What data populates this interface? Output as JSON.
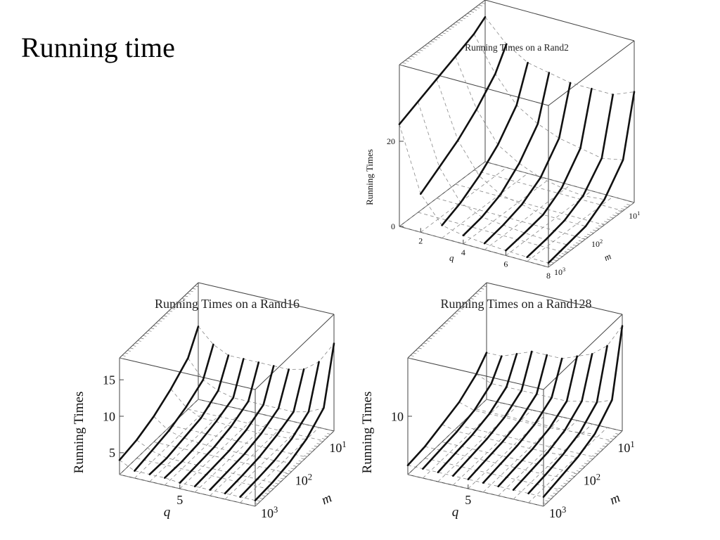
{
  "slide": {
    "title": "Running time"
  },
  "chart_data": [
    {
      "type": "surface-3d",
      "title": "Running Times on a Rand2",
      "zlabel": "Running Times",
      "xlabel": "q",
      "ylabel": "m",
      "x_ticks": [
        "2",
        "4",
        "6",
        "8"
      ],
      "z_ticks": [
        "0",
        "20"
      ],
      "y_ticks": [
        {
          "base": "10",
          "exp": "1"
        },
        {
          "base": "10",
          "exp": "2"
        },
        {
          "base": "10",
          "exp": "3"
        }
      ],
      "q": [
        1,
        2,
        3,
        4,
        5,
        6,
        7,
        8
      ],
      "m_log": [
        0.7,
        1,
        1.5,
        2,
        2.5,
        3
      ],
      "zlim": [
        0,
        38
      ],
      "series": [
        {
          "q": 1,
          "values": [
            34,
            32,
            30,
            28,
            26,
            24
          ]
        },
        {
          "q": 2,
          "values": [
            29,
            24,
            19,
            15,
            12,
            9
          ]
        },
        {
          "q": 3,
          "values": [
            26,
            18,
            12,
            8,
            5,
            3
          ]
        },
        {
          "q": 4,
          "values": [
            25,
            15,
            9,
            5,
            3,
            2
          ]
        },
        {
          "q": 5,
          "values": [
            24,
            13,
            7,
            4,
            2.5,
            1.5
          ]
        },
        {
          "q": 6,
          "values": [
            24,
            12,
            6,
            3,
            2,
            1.2
          ]
        },
        {
          "q": 7,
          "values": [
            24,
            11,
            5.5,
            3,
            1.8,
            1
          ]
        },
        {
          "q": 8,
          "values": [
            26,
            12,
            6,
            3,
            2,
            1
          ]
        }
      ]
    },
    {
      "type": "surface-3d",
      "title": "Running Times on a Rand16",
      "zlabel": "Running Times",
      "xlabel": "q",
      "ylabel": "m",
      "x_ticks": [
        "5"
      ],
      "z_ticks": [
        "5",
        "10",
        "15"
      ],
      "y_ticks": [
        {
          "base": "10",
          "exp": "1"
        },
        {
          "base": "10",
          "exp": "2"
        },
        {
          "base": "10",
          "exp": "3"
        }
      ],
      "q": [
        1,
        2,
        3,
        4,
        5,
        6,
        7,
        8,
        9,
        10
      ],
      "m_log": [
        0.7,
        1,
        1.5,
        2,
        2.5,
        3
      ],
      "zlim": [
        2,
        18
      ],
      "series": [
        {
          "q": 1,
          "values": [
            12,
            9,
            7,
            5.5,
            4.5,
            4
          ]
        },
        {
          "q": 2,
          "values": [
            10,
            6.5,
            5,
            4,
            3.5,
            3
          ]
        },
        {
          "q": 3,
          "values": [
            9,
            5.5,
            4,
            3.5,
            3,
            3
          ]
        },
        {
          "q": 4,
          "values": [
            9,
            5,
            4,
            3.3,
            3,
            3
          ]
        },
        {
          "q": 5,
          "values": [
            9,
            5,
            3.8,
            3.2,
            3,
            2.8
          ]
        },
        {
          "q": 6,
          "values": [
            9,
            5,
            3.8,
            3.2,
            3,
            2.8
          ]
        },
        {
          "q": 7,
          "values": [
            9,
            5,
            3.8,
            3.2,
            3,
            2.8
          ]
        },
        {
          "q": 8,
          "values": [
            9.5,
            5,
            4,
            3.3,
            3,
            2.8
          ]
        },
        {
          "q": 9,
          "values": [
            11,
            5.5,
            4,
            3.3,
            3,
            2.8
          ]
        },
        {
          "q": 10,
          "values": [
            14,
            6.5,
            4.5,
            3.5,
            3,
            2.8
          ]
        }
      ]
    },
    {
      "type": "surface-3d",
      "title": "Running Times on a Rand128",
      "zlabel": "Running Times",
      "xlabel": "q",
      "ylabel": "m",
      "x_ticks": [
        "5"
      ],
      "z_ticks": [
        "10"
      ],
      "y_ticks": [
        {
          "base": "10",
          "exp": "1"
        },
        {
          "base": "10",
          "exp": "2"
        },
        {
          "base": "10",
          "exp": "3"
        }
      ],
      "q": [
        1,
        2,
        3,
        4,
        5,
        6,
        7,
        8,
        9,
        10
      ],
      "m_log": [
        0.7,
        1,
        1.5,
        2,
        2.5,
        3
      ],
      "zlim": [
        5,
        15
      ],
      "series": [
        {
          "q": 1,
          "values": [
            9,
            8,
            7,
            6.5,
            6,
            5.8
          ]
        },
        {
          "q": 2,
          "values": [
            9,
            7.5,
            6.6,
            6.2,
            6,
            5.8
          ]
        },
        {
          "q": 3,
          "values": [
            9.5,
            7.5,
            6.6,
            6.2,
            6,
            5.8
          ]
        },
        {
          "q": 4,
          "values": [
            10,
            7.5,
            6.6,
            6.2,
            6,
            5.8
          ]
        },
        {
          "q": 5,
          "values": [
            10,
            7.5,
            6.6,
            6.2,
            6,
            5.8
          ]
        },
        {
          "q": 6,
          "values": [
            10,
            7.5,
            6.6,
            6.2,
            6,
            5.8
          ]
        },
        {
          "q": 7,
          "values": [
            10.5,
            7.5,
            6.6,
            6.2,
            6,
            5.8
          ]
        },
        {
          "q": 8,
          "values": [
            11,
            7.8,
            6.7,
            6.2,
            6,
            5.8
          ]
        },
        {
          "q": 9,
          "values": [
            12,
            8,
            6.8,
            6.3,
            6,
            5.8
          ]
        },
        {
          "q": 10,
          "values": [
            14,
            8.5,
            7,
            6.4,
            6.1,
            5.8
          ]
        }
      ]
    }
  ]
}
